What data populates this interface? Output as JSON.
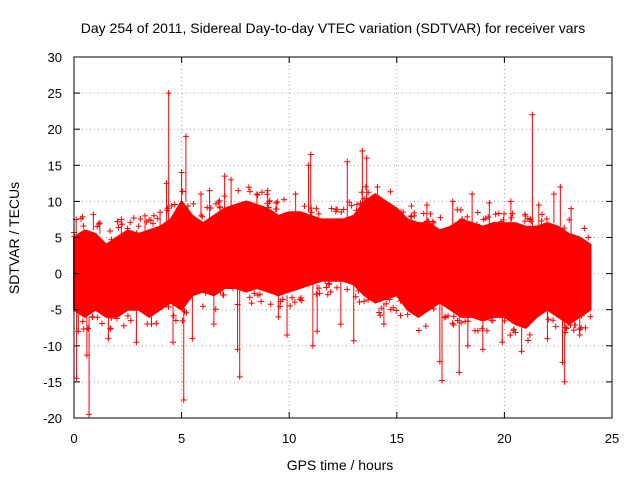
{
  "chart_data": {
    "type": "scatter",
    "title": "Day 254 of 2011, Sidereal Day-to-day VTEC variation (SDTVAR) for receiver vars",
    "xlabel": "GPS time / hours",
    "ylabel": "SDTVAR / TECUs",
    "xlim": [
      0,
      25
    ],
    "ylim": [
      -20,
      30
    ],
    "xticks": [
      0,
      5,
      10,
      15,
      20,
      25
    ],
    "yticks": [
      -20,
      -15,
      -10,
      -5,
      0,
      5,
      10,
      15,
      20,
      25,
      30
    ],
    "grid": true,
    "grid_style": "dotted",
    "marker": "+",
    "series": [
      {
        "name": "vars",
        "color": "#ff0000",
        "envelope": {
          "x": [
            0.0,
            0.5,
            1.0,
            1.5,
            2.0,
            2.5,
            3.0,
            3.5,
            4.0,
            4.5,
            5.0,
            5.5,
            6.0,
            6.5,
            7.0,
            7.5,
            8.0,
            8.5,
            9.0,
            9.5,
            10.0,
            10.5,
            11.0,
            11.5,
            12.0,
            12.5,
            13.0,
            13.5,
            14.0,
            14.5,
            15.0,
            15.5,
            16.0,
            16.5,
            17.0,
            17.5,
            18.0,
            18.5,
            19.0,
            19.5,
            20.0,
            20.5,
            21.0,
            21.5,
            22.0,
            22.5,
            23.0,
            23.5,
            24.0
          ],
          "upper": [
            5,
            6,
            5.5,
            4,
            5,
            6,
            5.5,
            6,
            6.5,
            7.5,
            10,
            8,
            7,
            8,
            9,
            9.5,
            10,
            9.5,
            9,
            8,
            8.5,
            8.5,
            8,
            7.5,
            7.5,
            7.5,
            8,
            10,
            11,
            10,
            9,
            7.5,
            7,
            7,
            6,
            6.5,
            7.5,
            7,
            6.5,
            7,
            7,
            7,
            6.5,
            6.5,
            7,
            6.5,
            5.5,
            5,
            4
          ],
          "lower": [
            -5,
            -6,
            -5,
            -6,
            -6,
            -5,
            -5,
            -6,
            -5,
            -4,
            -5,
            -3,
            -2.5,
            -3,
            -2,
            -2,
            -2.5,
            -2,
            -2.5,
            -3,
            -2.5,
            -2,
            -1.5,
            -1,
            -1,
            -1,
            -1.5,
            -3,
            -4,
            -3.5,
            -3,
            -5,
            -6,
            -5,
            -4,
            -5,
            -6,
            -6,
            -6.5,
            -6,
            -6,
            -7,
            -7.5,
            -6,
            -5,
            -6,
            -7,
            -6,
            -5
          ]
        },
        "spikes": [
          {
            "x": 0.1,
            "y": 7.5
          },
          {
            "x": 0.12,
            "y": -14.5
          },
          {
            "x": 0.2,
            "y": -8
          },
          {
            "x": 0.6,
            "y": -11.3
          },
          {
            "x": 0.7,
            "y": -19.5
          },
          {
            "x": 0.9,
            "y": 8.2
          },
          {
            "x": 1.2,
            "y": 7
          },
          {
            "x": 1.6,
            "y": -9
          },
          {
            "x": 2.2,
            "y": 7.5
          },
          {
            "x": 2.9,
            "y": -9.5
          },
          {
            "x": 3.3,
            "y": 8
          },
          {
            "x": 3.6,
            "y": -7
          },
          {
            "x": 4.0,
            "y": 8.5
          },
          {
            "x": 4.3,
            "y": 12.5
          },
          {
            "x": 4.4,
            "y": 25
          },
          {
            "x": 4.6,
            "y": -9.5
          },
          {
            "x": 5.0,
            "y": 14
          },
          {
            "x": 5.2,
            "y": 19
          },
          {
            "x": 5.1,
            "y": -17.5
          },
          {
            "x": 5.5,
            "y": -9
          },
          {
            "x": 5.9,
            "y": 11
          },
          {
            "x": 6.3,
            "y": 11.5
          },
          {
            "x": 6.5,
            "y": -7
          },
          {
            "x": 7.0,
            "y": 13.5
          },
          {
            "x": 7.3,
            "y": 13
          },
          {
            "x": 7.6,
            "y": -10.5
          },
          {
            "x": 7.7,
            "y": -14.3
          },
          {
            "x": 8.5,
            "y": 11
          },
          {
            "x": 9.0,
            "y": 11.5
          },
          {
            "x": 9.5,
            "y": -6
          },
          {
            "x": 9.9,
            "y": -8.5
          },
          {
            "x": 10.3,
            "y": 11
          },
          {
            "x": 10.9,
            "y": 15
          },
          {
            "x": 11.0,
            "y": 16.5
          },
          {
            "x": 11.1,
            "y": -10
          },
          {
            "x": 11.3,
            "y": -8
          },
          {
            "x": 12.4,
            "y": -7
          },
          {
            "x": 12.7,
            "y": 15.5
          },
          {
            "x": 13.0,
            "y": -9.3
          },
          {
            "x": 13.4,
            "y": 17
          },
          {
            "x": 13.6,
            "y": 16
          },
          {
            "x": 14.1,
            "y": 12
          },
          {
            "x": 14.4,
            "y": -7
          },
          {
            "x": 15.2,
            "y": 7
          },
          {
            "x": 16.4,
            "y": 9.5
          },
          {
            "x": 17.0,
            "y": -12.2
          },
          {
            "x": 17.1,
            "y": -14.8
          },
          {
            "x": 17.6,
            "y": 10
          },
          {
            "x": 17.9,
            "y": -13.7
          },
          {
            "x": 18.3,
            "y": -10
          },
          {
            "x": 18.5,
            "y": 11
          },
          {
            "x": 19.0,
            "y": -10.5
          },
          {
            "x": 19.3,
            "y": 9.8
          },
          {
            "x": 19.9,
            "y": -9.5
          },
          {
            "x": 20.3,
            "y": 10
          },
          {
            "x": 20.8,
            "y": -10.8
          },
          {
            "x": 21.3,
            "y": 22
          },
          {
            "x": 21.6,
            "y": 9.5
          },
          {
            "x": 22.0,
            "y": -9
          },
          {
            "x": 22.3,
            "y": 11
          },
          {
            "x": 22.6,
            "y": 12
          },
          {
            "x": 22.7,
            "y": -12.3
          },
          {
            "x": 22.8,
            "y": -15
          },
          {
            "x": 23.1,
            "y": 9
          },
          {
            "x": 23.5,
            "y": -8.5
          },
          {
            "x": 23.9,
            "y": 5
          }
        ]
      }
    ]
  }
}
